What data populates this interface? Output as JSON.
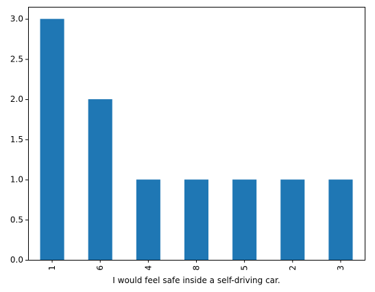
{
  "chart_data": {
    "type": "bar",
    "title": "",
    "xlabel": "I would feel safe inside a self-driving car.",
    "ylabel": "",
    "categories": [
      "1",
      "6",
      "4",
      "8",
      "5",
      "2",
      "3"
    ],
    "values": [
      3,
      2,
      1,
      1,
      1,
      1,
      1
    ],
    "ylim": [
      0,
      3.15
    ],
    "yticks": [
      0.0,
      0.5,
      1.0,
      1.5,
      2.0,
      2.5,
      3.0
    ],
    "ytick_labels": [
      "0.0",
      "0.5",
      "1.0",
      "1.5",
      "2.0",
      "2.5",
      "3.0"
    ],
    "grid": false,
    "legend": "none",
    "x_tick_rotation": "vertical",
    "bar_color": "#1f77b4"
  }
}
